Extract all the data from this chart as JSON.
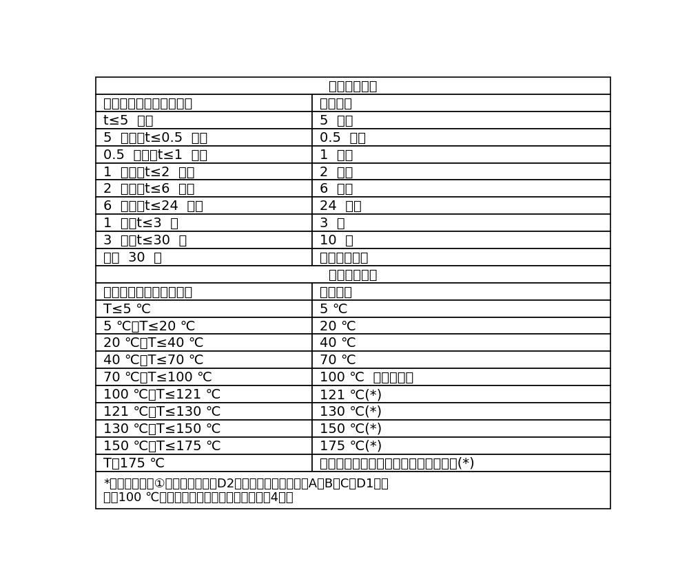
{
  "title1": "迁移时间选择",
  "title2": "迁移温度选择",
  "time_header": [
    "可预见的最恶劣接触时间",
    "测试时间"
  ],
  "time_rows": [
    [
      "t≤5  分钟",
      "5  分钟"
    ],
    [
      "5  分钟＜t≤0.5  小时",
      "0.5  小时"
    ],
    [
      "0.5  小时＜t≤1  小时",
      "1  小时"
    ],
    [
      "1  小时＜t≤2  小时",
      "2  小时"
    ],
    [
      "2  小时＜t≤6  小时",
      "6  小时"
    ],
    [
      "6  小时＜t≤24  小时",
      "24  小时"
    ],
    [
      "1  天＜t≤3  天",
      "3  天"
    ],
    [
      "3  天＜t≤30  天",
      "10  天"
    ],
    [
      "大于  30  天",
      "参见具体条件"
    ]
  ],
  "temp_header": [
    "可预见的最恶劣接触温度",
    "测试温度"
  ],
  "temp_rows": [
    [
      "T≤5 ℃",
      "5 ℃"
    ],
    [
      "5 ℃＜T≤20 ℃",
      "20 ℃"
    ],
    [
      "20 ℃＜T≤40 ℃",
      "40 ℃"
    ],
    [
      "40 ℃＜T≤70 ℃",
      "70 ℃"
    ],
    [
      "70 ℃＜T≤100 ℃",
      "100 ℃  或回流温度"
    ],
    [
      "100 ℃＜T≤121 ℃",
      "121 ℃(*)"
    ],
    [
      "121 ℃＜T≤130 ℃",
      "130 ℃(*)"
    ],
    [
      "130 ℃＜T≤150 ℃",
      "150 ℃(*)"
    ],
    [
      "150 ℃＜T≤175 ℃",
      "175 ℃(*)"
    ],
    [
      "T＞175 ℃",
      "将温度调整至与食品接触面的实际温度(*)"
    ]
  ],
  "footnote_line1": "*温度只适用于①食品模拟物中的D2模拟物，而针对模拟物A、B、C和D1，可",
  "footnote_line2": "采用100 ℃或回流温度，并把测试时间增加到4倍。",
  "col_split": 0.42,
  "bg_color": "#ffffff",
  "border_color": "#000000",
  "font_size": 14,
  "footnote_font_size": 13
}
